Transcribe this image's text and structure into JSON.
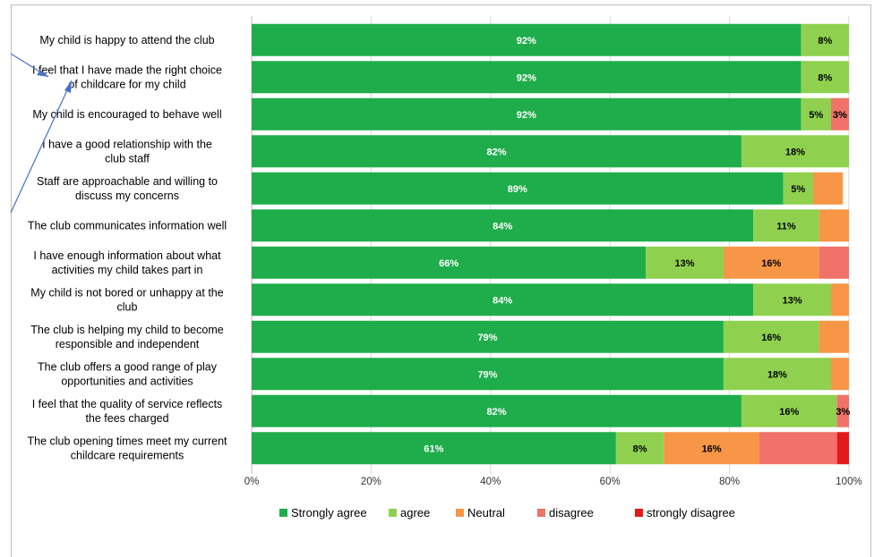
{
  "chart_data": {
    "type": "bar",
    "orientation": "horizontal",
    "stacked": true,
    "percent_axis": true,
    "xlim": [
      0,
      100
    ],
    "x_ticks": [
      "0%",
      "20%",
      "40%",
      "60%",
      "80%",
      "100%"
    ],
    "categories": [
      [
        "My child is happy to attend the club"
      ],
      [
        "I feel that I have made the right choice",
        "of childcare for my child"
      ],
      [
        "My child is encouraged to behave well"
      ],
      [
        "I have a good relationship with the",
        "club staff"
      ],
      [
        "Staff are approachable and willing to",
        "discuss my concerns"
      ],
      [
        "The club communicates information well"
      ],
      [
        "I have enough information about what",
        "activities my child takes part in"
      ],
      [
        "My child is not bored or unhappy at the",
        "club"
      ],
      [
        "The club is helping my child to become",
        "responsible and independent"
      ],
      [
        "The club offers a good range of play",
        "opportunities and activities"
      ],
      [
        "I feel that the quality of service reflects",
        "the fees charged"
      ],
      [
        "The club opening times meet my current",
        "childcare requirements"
      ]
    ],
    "series": [
      {
        "name": "Strongly agree",
        "color": "#1fad4b",
        "values": [
          92,
          92,
          92,
          82,
          89,
          84,
          66,
          84,
          79,
          79,
          82,
          61
        ],
        "labels": [
          "92%",
          "92%",
          "92%",
          "82%",
          "89%",
          "84%",
          "66%",
          "84%",
          "79%",
          "79%",
          "82%",
          "61%"
        ]
      },
      {
        "name": "agree",
        "color": "#8fd14f",
        "values": [
          8,
          8,
          5,
          18,
          5,
          11,
          13,
          13,
          16,
          18,
          16,
          8
        ],
        "labels": [
          "8%",
          "8%",
          "5%",
          "18%",
          "5%",
          "11%",
          "13%",
          "13%",
          "16%",
          "18%",
          "16%",
          "8%"
        ]
      },
      {
        "name": "Neutral",
        "color": "#f79646",
        "values": [
          0,
          0,
          0,
          0,
          5,
          5,
          16,
          3,
          5,
          3,
          0,
          16
        ],
        "labels": [
          "",
          "",
          "",
          "",
          "",
          "",
          "16%",
          "",
          "",
          "",
          "",
          "16%"
        ]
      },
      {
        "name": "disagree",
        "color": "#f07268",
        "values": [
          0,
          0,
          3,
          0,
          0,
          0,
          5,
          0,
          0,
          0,
          3,
          13
        ],
        "labels": [
          "",
          "",
          "3%",
          "",
          "",
          "",
          "",
          "",
          "",
          "",
          "3%",
          ""
        ]
      },
      {
        "name": "strongly disagree",
        "color": "#e31a1c",
        "values": [
          0,
          0,
          0,
          0,
          0,
          0,
          0,
          0,
          0,
          0,
          0,
          2
        ],
        "labels": [
          "",
          "",
          "",
          "",
          "",
          "",
          "",
          "",
          "",
          "",
          "",
          ""
        ]
      }
    ],
    "legend_position": "bottom",
    "grid": "vertical",
    "annotation_arrows": 2
  }
}
